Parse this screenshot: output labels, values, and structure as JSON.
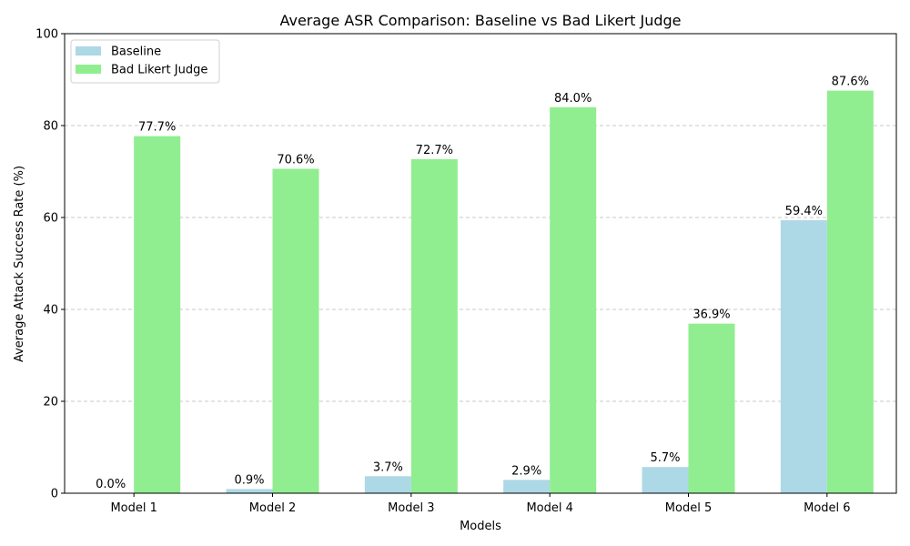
{
  "chart_data": {
    "type": "bar",
    "title": "Average ASR Comparison: Baseline vs Bad Likert Judge",
    "xlabel": "Models",
    "ylabel": "Average Attack Success Rate (%)",
    "categories": [
      "Model 1",
      "Model 2",
      "Model 3",
      "Model 4",
      "Model 5",
      "Model 6"
    ],
    "ylim": [
      0,
      100
    ],
    "yticks": [
      0,
      20,
      40,
      60,
      80,
      100
    ],
    "grid": "horizontal dashed",
    "legend_position": "top-left",
    "value_suffix": "%",
    "series": [
      {
        "name": "Baseline",
        "color": "#add8e6",
        "values": [
          0.0,
          0.9,
          3.7,
          2.9,
          5.7,
          59.4
        ]
      },
      {
        "name": "Bad Likert Judge",
        "color": "#90ee90",
        "values": [
          77.7,
          70.6,
          72.7,
          84.0,
          36.9,
          87.6
        ]
      }
    ]
  }
}
